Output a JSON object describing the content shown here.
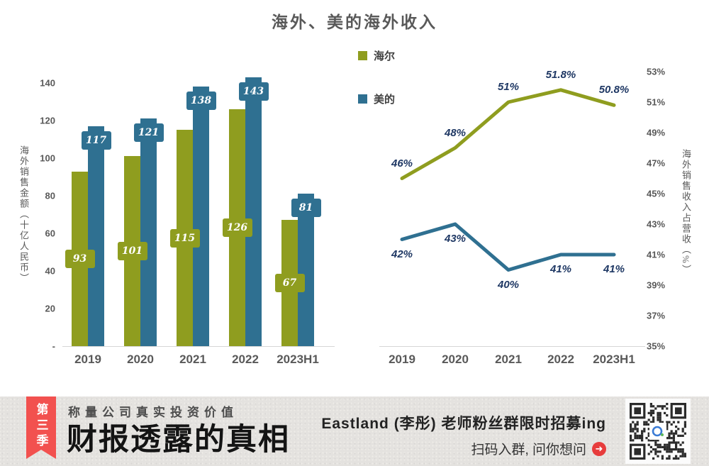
{
  "title": "海外、美的海外收入",
  "colors": {
    "haier": "#8F9D1F",
    "midea": "#2F7091",
    "line_label": "#1F3864",
    "axis_text": "#595959",
    "ribbon_red": "#F2514F",
    "arrow_red": "#E73C3C"
  },
  "legend": [
    {
      "label": "海尔",
      "color": "#8F9D1F"
    },
    {
      "label": "美的",
      "color": "#2F7091"
    }
  ],
  "chart_data": [
    {
      "type": "bar",
      "title": "海外、美的海外收入",
      "categories": [
        "2019",
        "2020",
        "2021",
        "2022",
        "2023H1"
      ],
      "series": [
        {
          "name": "海尔",
          "color": "#8F9D1F",
          "values": [
            93,
            101,
            115,
            126,
            67
          ]
        },
        {
          "name": "美的",
          "color": "#2F7091",
          "values": [
            117,
            121,
            138,
            143,
            81
          ]
        }
      ],
      "ylabel": "海外销售金额（十亿人民币）",
      "yticks": [
        140,
        120,
        100,
        80,
        60,
        40,
        20
      ],
      "zero_tick": "-",
      "ylim": [
        0,
        150
      ],
      "grid": false,
      "legend_position": "top-center-between-charts"
    },
    {
      "type": "line",
      "categories": [
        "2019",
        "2020",
        "2021",
        "2022",
        "2023H1"
      ],
      "series": [
        {
          "name": "海尔",
          "color": "#8F9D1F",
          "values": [
            46,
            48,
            51,
            51.8,
            50.8
          ],
          "labels": [
            "46%",
            "48%",
            "51%",
            "51.8%",
            "50.8%"
          ],
          "label_pos": "above"
        },
        {
          "name": "美的",
          "color": "#2F7091",
          "values": [
            42,
            43,
            40,
            41,
            41
          ],
          "labels": [
            "42%",
            "43%",
            "40%",
            "41%",
            "41%"
          ],
          "label_pos": "below"
        }
      ],
      "ylabel": "海外销售收入占营收（%）",
      "yticks": [
        "53%",
        "51%",
        "49%",
        "47%",
        "45%",
        "43%",
        "41%",
        "39%",
        "37%",
        "35%"
      ],
      "ylim": [
        35,
        53
      ],
      "grid": false,
      "label_color": "#1F3864"
    }
  ],
  "footer": {
    "ribbon": "第三季",
    "slogan": "称量公司真实投资价值",
    "big_title": "财报透露的真相",
    "promo_line1": "Eastland (李彤) 老师粉丝群限时招募ing",
    "promo_line2": "扫码入群, 问你想问",
    "arrow_icon": "➜",
    "qr_label": "qr-code"
  }
}
